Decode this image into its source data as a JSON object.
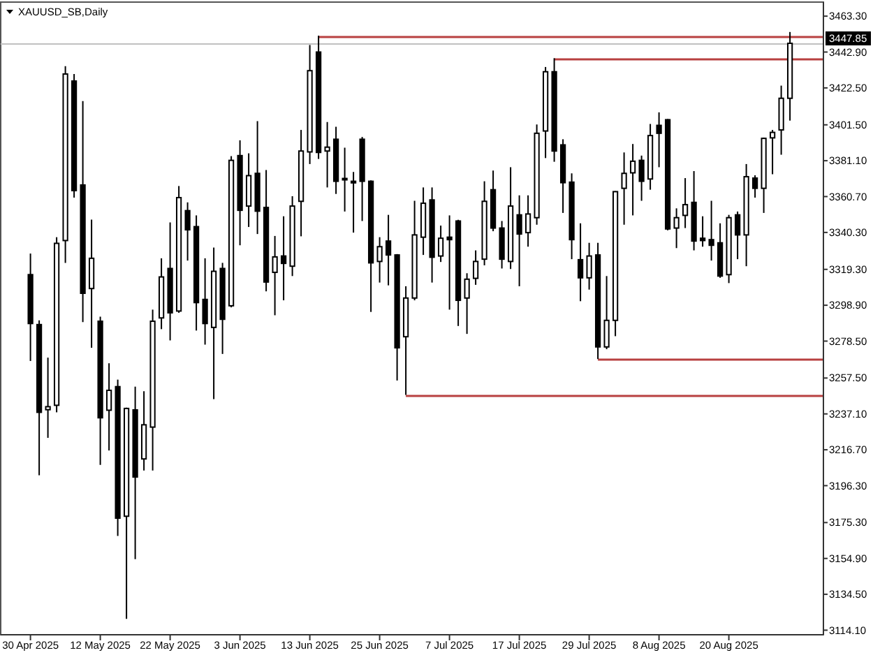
{
  "chart_data": {
    "type": "candlestick",
    "title": "XAUUSD_SB,Daily",
    "categories": [
      "30 Apr 2025",
      null,
      null,
      null,
      null,
      null,
      null,
      null,
      "12 May 2025",
      null,
      null,
      null,
      null,
      null,
      null,
      null,
      "22 May 2025",
      null,
      null,
      null,
      null,
      null,
      null,
      null,
      "3 Jun 2025",
      null,
      null,
      null,
      null,
      null,
      null,
      null,
      "13 Jun 2025",
      null,
      null,
      null,
      null,
      null,
      null,
      null,
      "25 Jun 2025",
      null,
      null,
      null,
      null,
      null,
      null,
      null,
      "7 Jul 2025",
      null,
      null,
      null,
      null,
      null,
      null,
      null,
      "17 Jul 2025",
      null,
      null,
      null,
      null,
      null,
      null,
      null,
      "29 Jul 2025",
      null,
      null,
      null,
      null,
      null,
      null,
      null,
      "8 Aug 2025",
      null,
      null,
      null,
      null,
      null,
      null,
      null,
      "20 Aug 2025",
      null,
      null,
      null,
      null,
      null,
      null,
      null
    ],
    "ohlc": [
      [
        3316.3,
        3328.3,
        3267.2,
        3288.5
      ],
      [
        3287.9,
        3290.3,
        3202.2,
        3238.0
      ],
      [
        3239.5,
        3269.1,
        3223.5,
        3241.2
      ],
      [
        3242.0,
        3337.6,
        3238.0,
        3334.1
      ],
      [
        3335.7,
        3434.9,
        3323.0,
        3430.4
      ],
      [
        3426.4,
        3430.4,
        3360.1,
        3364.1
      ],
      [
        3367.3,
        3415.0,
        3289.3,
        3305.7
      ],
      [
        3308.4,
        3347.6,
        3274.7,
        3325.6
      ],
      [
        3289.8,
        3292.4,
        3208.1,
        3234.9
      ],
      [
        3239.2,
        3265.9,
        3216.3,
        3250.5
      ],
      [
        3252.6,
        3256.6,
        3167.7,
        3177.8
      ],
      [
        3178.9,
        3240.7,
        3120.5,
        3240.2
      ],
      [
        3239.4,
        3252.6,
        3154.5,
        3201.2
      ],
      [
        3211.5,
        3250.0,
        3204.9,
        3230.9
      ],
      [
        3229.6,
        3296.4,
        3204.9,
        3289.8
      ],
      [
        3291.7,
        3325.6,
        3285.3,
        3315.0
      ],
      [
        3319.8,
        3346.0,
        3278.9,
        3294.6
      ],
      [
        3295.6,
        3366.7,
        3294.6,
        3360.1
      ],
      [
        3352.7,
        3357.4,
        3324.3,
        3341.8
      ],
      [
        3343.6,
        3350.0,
        3284.5,
        3300.4
      ],
      [
        3302.2,
        3325.6,
        3276.5,
        3288.5
      ],
      [
        3286.3,
        3331.7,
        3245.5,
        3318.2
      ],
      [
        3319.8,
        3323.0,
        3271.2,
        3290.9
      ],
      [
        3298.6,
        3383.7,
        3297.7,
        3381.3
      ],
      [
        3384.0,
        3392.7,
        3333.0,
        3352.9
      ],
      [
        3355.3,
        3385.3,
        3343.4,
        3372.6
      ],
      [
        3373.9,
        3403.6,
        3339.4,
        3352.4
      ],
      [
        3354.5,
        3375.8,
        3306.8,
        3312.1
      ],
      [
        3317.6,
        3338.3,
        3293.2,
        3326.4
      ],
      [
        3326.9,
        3349.5,
        3301.7,
        3322.7
      ],
      [
        3321.1,
        3360.9,
        3315.5,
        3355.3
      ],
      [
        3358.0,
        3398.6,
        3338.1,
        3386.6
      ],
      [
        3386.1,
        3446.9,
        3379.2,
        3432.3
      ],
      [
        3442.9,
        3452.2,
        3382.1,
        3385.8
      ],
      [
        3386.6,
        3403.1,
        3365.9,
        3388.8
      ],
      [
        3393.3,
        3400.4,
        3362.2,
        3369.4
      ],
      [
        3371.0,
        3388.5,
        3352.2,
        3370.5
      ],
      [
        3369.4,
        3374.7,
        3340.2,
        3368.5
      ],
      [
        3393.3,
        3394.6,
        3346.8,
        3369.4
      ],
      [
        3369.4,
        3369.9,
        3295.1,
        3323.0
      ],
      [
        3323.8,
        3337.6,
        3311.8,
        3332.2
      ],
      [
        3335.4,
        3350.3,
        3310.2,
        3327.5
      ],
      [
        3327.5,
        3328.0,
        3256.1,
        3274.7
      ],
      [
        3281.0,
        3309.7,
        3247.9,
        3303.0
      ],
      [
        3303.0,
        3358.3,
        3301.7,
        3338.9
      ],
      [
        3337.6,
        3365.9,
        3327.5,
        3356.9
      ],
      [
        3358.8,
        3365.9,
        3311.8,
        3326.2
      ],
      [
        3326.9,
        3344.2,
        3323.5,
        3337.0
      ],
      [
        3337.6,
        3350.0,
        3296.4,
        3336.2
      ],
      [
        3346.8,
        3347.5,
        3287.1,
        3301.7
      ],
      [
        3303.0,
        3317.1,
        3282.6,
        3313.7
      ],
      [
        3314.2,
        3330.1,
        3310.5,
        3323.8
      ],
      [
        3325.1,
        3369.4,
        3321.6,
        3358.0
      ],
      [
        3364.6,
        3375.5,
        3341.0,
        3342.8
      ],
      [
        3342.8,
        3346.8,
        3319.8,
        3325.1
      ],
      [
        3323.8,
        3377.4,
        3319.5,
        3355.3
      ],
      [
        3350.3,
        3361.4,
        3309.7,
        3339.4
      ],
      [
        3340.2,
        3361.4,
        3332.2,
        3350.8
      ],
      [
        3348.7,
        3401.7,
        3344.7,
        3396.7
      ],
      [
        3398.0,
        3434.4,
        3382.6,
        3431.7
      ],
      [
        3431.7,
        3439.4,
        3380.5,
        3386.6
      ],
      [
        3390.1,
        3393.3,
        3351.4,
        3368.6
      ],
      [
        3368.9,
        3373.9,
        3325.1,
        3336.2
      ],
      [
        3324.8,
        3345.5,
        3301.2,
        3314.5
      ],
      [
        3314.5,
        3334.4,
        3307.8,
        3326.9
      ],
      [
        3327.5,
        3334.4,
        3268.3,
        3275.2
      ],
      [
        3275.2,
        3315.5,
        3273.9,
        3290.3
      ],
      [
        3290.3,
        3363.8,
        3281.3,
        3363.5
      ],
      [
        3365.4,
        3385.8,
        3344.7,
        3373.9
      ],
      [
        3374.2,
        3390.6,
        3350.0,
        3380.8
      ],
      [
        3381.3,
        3384.0,
        3358.3,
        3369.4
      ],
      [
        3370.7,
        3402.0,
        3364.6,
        3395.4
      ],
      [
        3401.2,
        3408.6,
        3377.4,
        3396.7
      ],
      [
        3404.4,
        3404.8,
        3341.5,
        3342.3
      ],
      [
        3342.8,
        3354.0,
        3331.4,
        3348.7
      ],
      [
        3350.0,
        3371.2,
        3342.8,
        3356.1
      ],
      [
        3357.4,
        3375.2,
        3330.1,
        3335.4
      ],
      [
        3337.0,
        3349.5,
        3332.2,
        3335.7
      ],
      [
        3336.2,
        3358.3,
        3324.3,
        3333.0
      ],
      [
        3334.4,
        3345.5,
        3314.5,
        3315.5
      ],
      [
        3316.3,
        3350.3,
        3311.5,
        3348.7
      ],
      [
        3350.3,
        3352.2,
        3325.1,
        3338.9
      ],
      [
        3338.9,
        3379.2,
        3321.1,
        3372.0
      ],
      [
        3371.2,
        3372.8,
        3360.1,
        3365.4
      ],
      [
        3365.4,
        3394.2,
        3351.4,
        3393.8
      ],
      [
        3394.1,
        3398.6,
        3373.4,
        3397.2
      ],
      [
        3398.6,
        3423.8,
        3384.5,
        3416.6
      ],
      [
        3416.6,
        3454.3,
        3403.9,
        3447.85
      ]
    ],
    "ylim": [
      3111.5,
      3471.3
    ],
    "yticks": [
      {
        "value": 3463.3,
        "label": "3463.30"
      },
      {
        "value": 3442.9,
        "label": "3442.90"
      },
      {
        "value": 3422.5,
        "label": "3422.50"
      },
      {
        "value": 3401.5,
        "label": "3401.50"
      },
      {
        "value": 3381.1,
        "label": "3381.10"
      },
      {
        "value": 3360.7,
        "label": "3360.70"
      },
      {
        "value": 3340.3,
        "label": "3340.30"
      },
      {
        "value": 3319.3,
        "label": "3319.30"
      },
      {
        "value": 3298.9,
        "label": "3298.90"
      },
      {
        "value": 3278.5,
        "label": "3278.50"
      },
      {
        "value": 3257.5,
        "label": "3257.50"
      },
      {
        "value": 3237.1,
        "label": "3237.10"
      },
      {
        "value": 3216.7,
        "label": "3216.70"
      },
      {
        "value": 3196.3,
        "label": "3196.30"
      },
      {
        "value": 3175.3,
        "label": "3175.30"
      },
      {
        "value": 3154.9,
        "label": "3154.90"
      },
      {
        "value": 3134.5,
        "label": "3134.50"
      },
      {
        "value": 3114.1,
        "label": "3114.10"
      }
    ],
    "ref_lines": [
      {
        "axis": "y",
        "value": 3447.85,
        "label": "3447.85",
        "color": "#c0c0c0"
      },
      {
        "axis": "y",
        "value": 3452.2,
        "color": "#b84040"
      },
      {
        "axis": "y",
        "value": 3439.4,
        "color": "#b84040"
      },
      {
        "axis": "y",
        "value": 3268.3,
        "color": "#b84040"
      },
      {
        "axis": "y",
        "value": 3247.9,
        "color": "#b84040"
      }
    ]
  }
}
